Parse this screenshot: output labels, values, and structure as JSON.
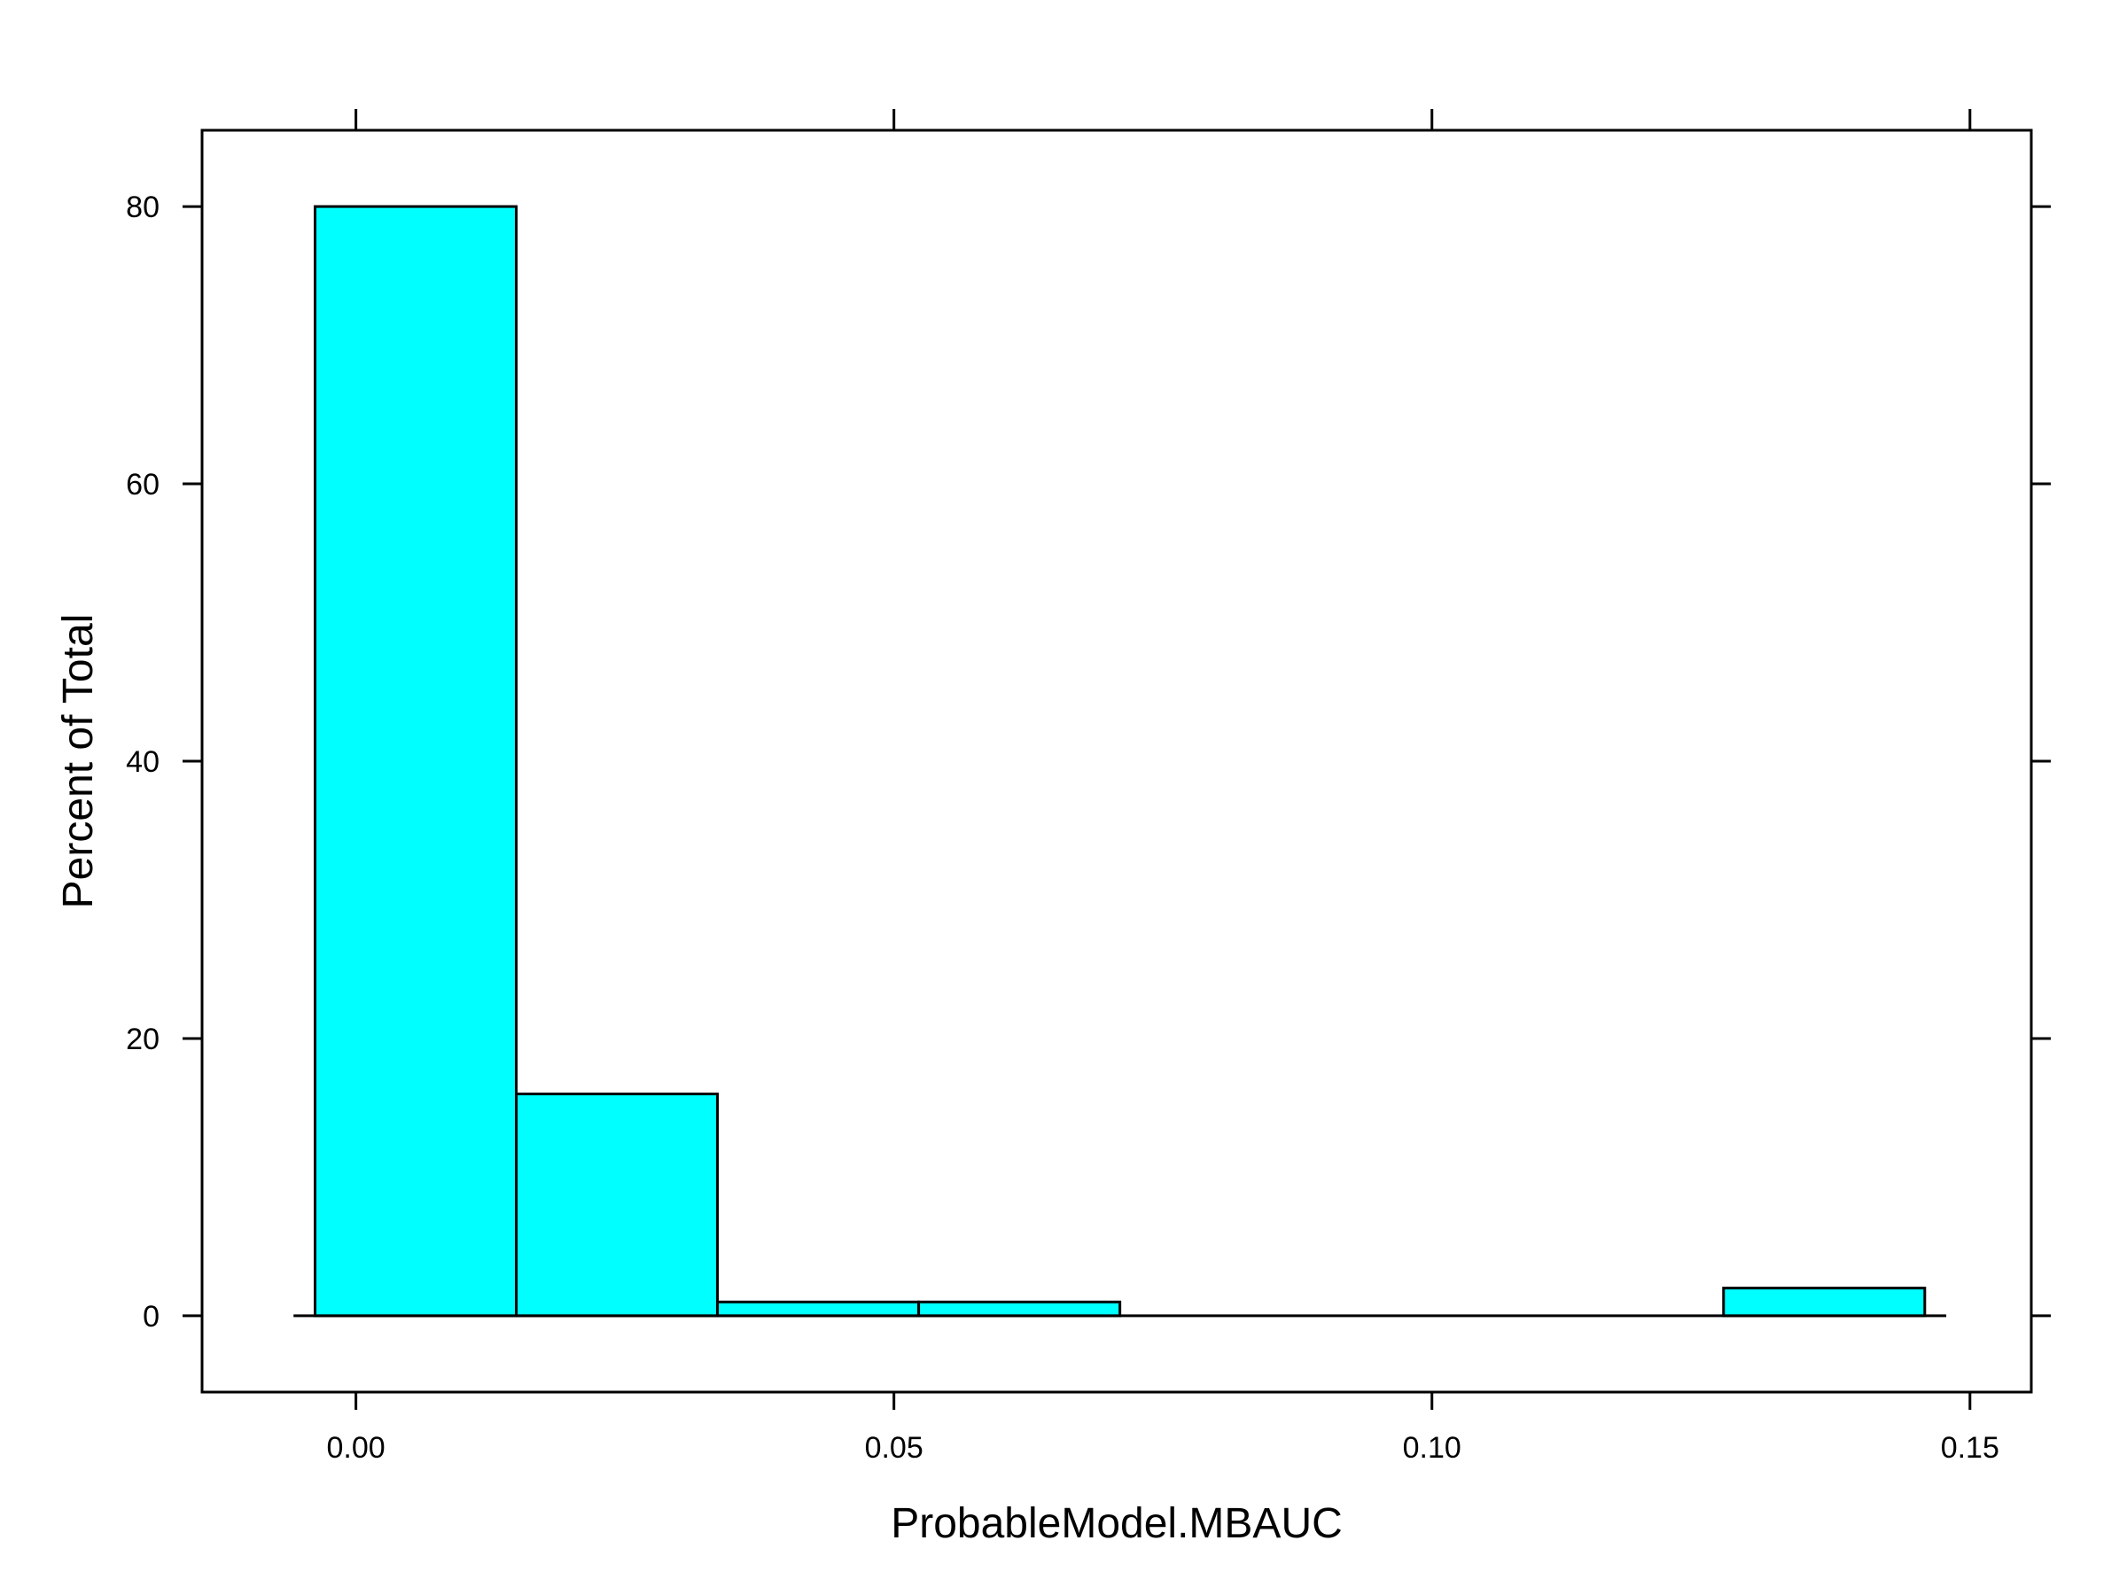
{
  "chart_data": {
    "type": "bar",
    "subtype": "histogram",
    "xlabel": "ProbableModel.MBAUC",
    "ylabel": "Percent of Total",
    "xlim": [
      -0.0143,
      0.1557
    ],
    "ylim": [
      -5.5,
      85.5
    ],
    "x_ticks": [
      {
        "value": 0.0,
        "label": "0.00"
      },
      {
        "value": 0.05,
        "label": "0.05"
      },
      {
        "value": 0.1,
        "label": "0.10"
      },
      {
        "value": 0.15,
        "label": "0.15"
      }
    ],
    "y_ticks": [
      {
        "value": 0,
        "label": "0"
      },
      {
        "value": 20,
        "label": "20"
      },
      {
        "value": 40,
        "label": "40"
      },
      {
        "value": 60,
        "label": "60"
      },
      {
        "value": 80,
        "label": "80"
      }
    ],
    "bins": [
      {
        "x0": -0.0038,
        "x1": 0.0149,
        "value": 80
      },
      {
        "x0": 0.0149,
        "x1": 0.0336,
        "value": 16
      },
      {
        "x0": 0.0336,
        "x1": 0.0523,
        "value": 1
      },
      {
        "x0": 0.0523,
        "x1": 0.071,
        "value": 1
      },
      {
        "x0": 0.071,
        "x1": 0.0897,
        "value": 0
      },
      {
        "x0": 0.0897,
        "x1": 0.1084,
        "value": 0
      },
      {
        "x0": 0.1084,
        "x1": 0.1271,
        "value": 0
      },
      {
        "x0": 0.1271,
        "x1": 0.1458,
        "value": 2
      }
    ],
    "baseline_x": [
      -0.0058,
      0.1478
    ],
    "bar_color": "#00FFFF",
    "grid": false,
    "legend": "none"
  }
}
